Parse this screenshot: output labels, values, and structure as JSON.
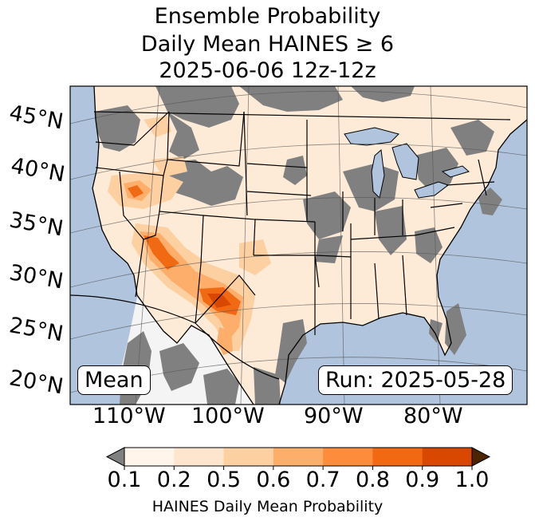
{
  "title": {
    "line1": "Ensemble Probability",
    "line2": "Daily Mean HAINES ≥ 6",
    "line3": "2025-06-06 12z-12z"
  },
  "map": {
    "latitude_labels": [
      "45°N",
      "40°N",
      "35°N",
      "30°N",
      "25°N",
      "20°N"
    ],
    "longitude_labels": [
      "110°W",
      "100°W",
      "90°W",
      "80°W"
    ],
    "ocean_color": "#b0c4de",
    "missing_color": "#808080",
    "outside_colors": {
      "under": "#808080",
      "over": "#4d2400"
    }
  },
  "stat_label": "Mean",
  "run_label": "Run: 2025-05-28",
  "colorbar": {
    "bounds": [
      "0.1",
      "0.2",
      "0.5",
      "0.6",
      "0.7",
      "0.8",
      "0.9",
      "1.0"
    ],
    "colors": [
      "#fff5eb",
      "#fee6ce",
      "#fdd0a2",
      "#fdae6b",
      "#fd8d3c",
      "#f16913",
      "#d94801"
    ],
    "label": "HAINES Daily Mean Probability"
  }
}
